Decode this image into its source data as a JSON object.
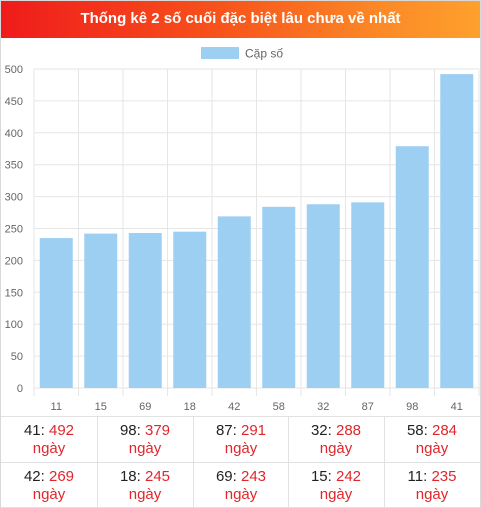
{
  "title": "Thống kê 2 số cuối đặc biệt lâu chưa về nhất",
  "chart_data": {
    "type": "bar",
    "legend": {
      "label": "Cặp số",
      "color": "#9dcff3",
      "placement": "top"
    },
    "categories": [
      "11",
      "15",
      "69",
      "18",
      "42",
      "58",
      "32",
      "87",
      "98",
      "41"
    ],
    "values": [
      235,
      242,
      243,
      245,
      269,
      284,
      288,
      291,
      379,
      492
    ],
    "ylim": [
      0,
      500
    ],
    "yticks": [
      0,
      50,
      100,
      150,
      200,
      250,
      300,
      350,
      400,
      450,
      500
    ],
    "grid": true,
    "bar_color": "#9dcff3"
  },
  "stats": [
    {
      "num": "41",
      "value": "492",
      "unit": "ngày"
    },
    {
      "num": "98",
      "value": "379",
      "unit": "ngày"
    },
    {
      "num": "87",
      "value": "291",
      "unit": "ngày"
    },
    {
      "num": "32",
      "value": "288",
      "unit": "ngày"
    },
    {
      "num": "58",
      "value": "284",
      "unit": "ngày"
    },
    {
      "num": "42",
      "value": "269",
      "unit": "ngày"
    },
    {
      "num": "18",
      "value": "245",
      "unit": "ngày"
    },
    {
      "num": "69",
      "value": "243",
      "unit": "ngày"
    },
    {
      "num": "15",
      "value": "242",
      "unit": "ngày"
    },
    {
      "num": "11",
      "value": "235",
      "unit": "ngày"
    }
  ]
}
